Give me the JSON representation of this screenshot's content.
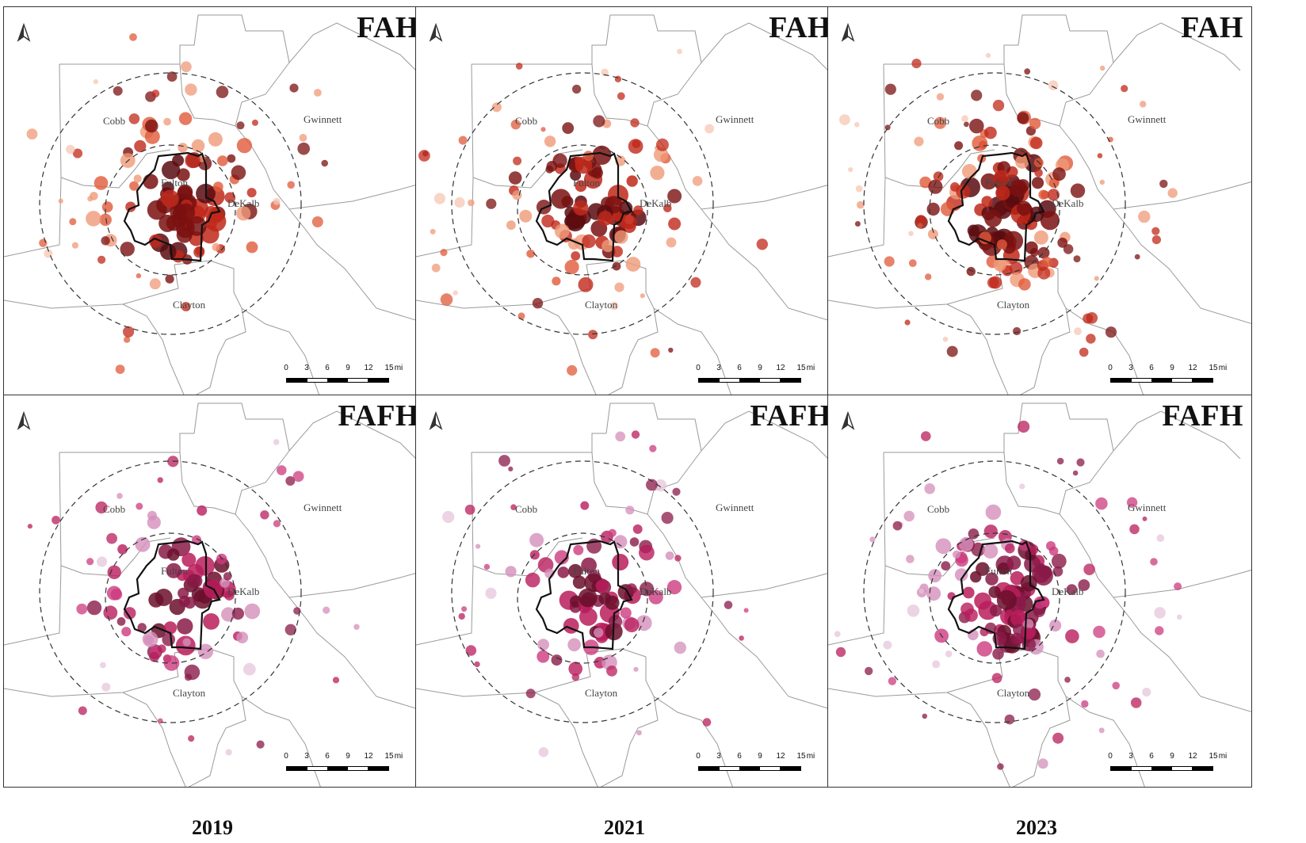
{
  "panels": [
    {
      "id": "fah-2019",
      "title": "FAH",
      "row": 0,
      "col": 0,
      "palette": "fah",
      "seed": 11,
      "extent": 1.0
    },
    {
      "id": "fah-2021",
      "title": "FAH",
      "row": 0,
      "col": 1,
      "palette": "fah",
      "seed": 23,
      "extent": 1.0
    },
    {
      "id": "fah-2023",
      "title": "FAH",
      "row": 0,
      "col": 2,
      "palette": "fah",
      "seed": 37,
      "extent": 1.35
    },
    {
      "id": "fafh-2019",
      "title": "FAFH",
      "row": 1,
      "col": 0,
      "palette": "fafh",
      "seed": 41,
      "extent": 0.8
    },
    {
      "id": "fafh-2021",
      "title": "FAFH",
      "row": 1,
      "col": 1,
      "palette": "fafh",
      "seed": 53,
      "extent": 0.8
    },
    {
      "id": "fafh-2023",
      "title": "FAFH",
      "row": 1,
      "col": 2,
      "palette": "fafh",
      "seed": 67,
      "extent": 1.2
    }
  ],
  "county_labels": {
    "cobb": "Cobb",
    "gwinnett": "Gwinnett",
    "fulton": "Fulton",
    "dekalb": "DeKalb",
    "clayton": "Clayton"
  },
  "scale_bar": {
    "ticks": [
      "0",
      "3",
      "6",
      "9",
      "12",
      "15"
    ],
    "unit": "mi"
  },
  "years": [
    "2019",
    "2021",
    "2023"
  ],
  "colors": {
    "fah": [
      "#f6c7b3",
      "#ef9a78",
      "#e05a3a",
      "#c0281a",
      "#7a1010",
      "#5a0c10"
    ],
    "fafh": [
      "#e6c6dc",
      "#d48fba",
      "#cc3b7e",
      "#b81d5c",
      "#8a1a48",
      "#6a0f2c"
    ],
    "county_outline": "#9a9a9a",
    "city_outline": "#111111",
    "buffer_ring": "#333333"
  }
}
